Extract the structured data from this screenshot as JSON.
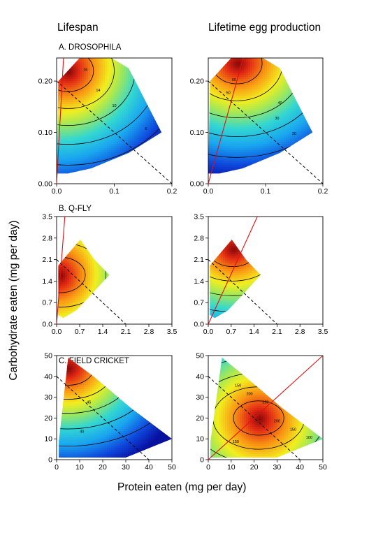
{
  "figure": {
    "column_titles": [
      "Lifespan",
      "Lifetime egg production"
    ],
    "xlabel": "Protein eaten (mg per day)",
    "ylabel": "Carbohydrate eaten (mg per day)"
  },
  "chart_data": [
    {
      "type": "heatmap",
      "panel": "A. DROSOPHILA",
      "column": "Lifespan",
      "x_ticks": [
        "0.0",
        "0.1",
        "0.2"
      ],
      "y_ticks": [
        "0.00",
        "0.10",
        "0.20"
      ],
      "xlim": [
        0,
        0.2
      ],
      "ylim": [
        0,
        0.245
      ],
      "region": [
        [
          0,
          0.02
        ],
        [
          0.003,
          0.2
        ],
        [
          0.04,
          0.245
        ],
        [
          0.095,
          0.245
        ],
        [
          0.125,
          0.225
        ],
        [
          0.15,
          0.17
        ],
        [
          0.182,
          0.1
        ],
        [
          0.125,
          0.06
        ],
        [
          0.06,
          0.03
        ],
        [
          0.02,
          0.02
        ]
      ],
      "hotspot": [
        0.02,
        0.22
      ],
      "hot_dir": [
        -1,
        1
      ],
      "contour_labels": [
        {
          "text": "16",
          "x": 0.05,
          "y": 0.22
        },
        {
          "text": "14",
          "x": 0.072,
          "y": 0.18
        },
        {
          "text": "10",
          "x": 0.1,
          "y": 0.15
        },
        {
          "text": "6",
          "x": 0.155,
          "y": 0.105
        }
      ],
      "nutrient_rail": {
        "from": [
          0,
          0
        ],
        "to": [
          0.012,
          0.245
        ]
      },
      "isocaloric": {
        "from": [
          0,
          0.2
        ],
        "to": [
          0.2,
          0
        ]
      }
    },
    {
      "type": "heatmap",
      "panel": "",
      "column": "Lifetime egg production",
      "x_ticks": [
        "0.0",
        "0.1",
        "0.2"
      ],
      "y_ticks": [
        "0.00",
        "0.10",
        "0.20"
      ],
      "xlim": [
        0,
        0.2
      ],
      "ylim": [
        0,
        0.245
      ],
      "region": [
        [
          0,
          0.02
        ],
        [
          0.003,
          0.2
        ],
        [
          0.04,
          0.245
        ],
        [
          0.095,
          0.245
        ],
        [
          0.125,
          0.225
        ],
        [
          0.15,
          0.17
        ],
        [
          0.182,
          0.1
        ],
        [
          0.125,
          0.06
        ],
        [
          0.06,
          0.03
        ],
        [
          0.02,
          0.02
        ]
      ],
      "hotspot": [
        0.05,
        0.235
      ],
      "hot_dir": [
        0,
        1
      ],
      "contour_labels": [
        {
          "text": "60",
          "x": 0.045,
          "y": 0.2
        },
        {
          "text": "50",
          "x": 0.035,
          "y": 0.175
        },
        {
          "text": "40",
          "x": 0.125,
          "y": 0.155
        },
        {
          "text": "30",
          "x": 0.12,
          "y": 0.125
        },
        {
          "text": "20",
          "x": 0.15,
          "y": 0.095
        }
      ],
      "nutrient_rail": {
        "from": [
          0,
          0
        ],
        "to": [
          0.061,
          0.245
        ]
      },
      "isocaloric": {
        "from": [
          0,
          0.2
        ],
        "to": [
          0.2,
          0
        ]
      }
    },
    {
      "type": "heatmap",
      "panel": "B. Q-FLY",
      "column": "Lifespan",
      "x_ticks": [
        "0.0",
        "0.7",
        "1.4",
        "2.1",
        "2.8",
        "3.5"
      ],
      "y_ticks": [
        "0.0",
        "0.7",
        "1.4",
        "2.1",
        "2.8",
        "3.5"
      ],
      "xlim": [
        0,
        3.5
      ],
      "ylim": [
        0,
        3.5
      ],
      "region": [
        [
          0.05,
          0.3
        ],
        [
          0.05,
          1.9
        ],
        [
          0.2,
          2.1
        ],
        [
          0.72,
          2.75
        ],
        [
          1.15,
          2.1
        ],
        [
          1.6,
          1.6
        ],
        [
          1.0,
          0.9
        ],
        [
          0.6,
          0.45
        ],
        [
          0.2,
          0.2
        ]
      ],
      "hotspot": [
        0.1,
        1.6
      ],
      "hot_dir": [
        -1,
        0.3
      ],
      "contour_labels": [],
      "nutrient_rail": {
        "from": [
          0,
          0
        ],
        "to": [
          0.25,
          3.5
        ]
      },
      "isocaloric": {
        "from": [
          0,
          2.1
        ],
        "to": [
          2.1,
          0
        ]
      }
    },
    {
      "type": "heatmap",
      "panel": "",
      "column": "Lifetime egg production",
      "x_ticks": [
        "0.0",
        "0.7",
        "1.4",
        "2.1",
        "2.8",
        "3.5"
      ],
      "y_ticks": [
        "0.0",
        "0.7",
        "1.4",
        "2.1",
        "2.8",
        "3.5"
      ],
      "xlim": [
        0,
        3.5
      ],
      "ylim": [
        0,
        3.5
      ],
      "region": [
        [
          0.05,
          0.3
        ],
        [
          0.05,
          1.9
        ],
        [
          0.2,
          2.1
        ],
        [
          0.72,
          2.75
        ],
        [
          1.15,
          2.1
        ],
        [
          1.6,
          1.6
        ],
        [
          1.0,
          0.9
        ],
        [
          0.6,
          0.45
        ],
        [
          0.2,
          0.2
        ]
      ],
      "hotspot": [
        0.75,
        2.45
      ],
      "hot_dir": [
        0,
        1
      ],
      "contour_labels": [],
      "nutrient_rail": {
        "from": [
          0,
          0
        ],
        "to": [
          1.5,
          3.5
        ]
      },
      "isocaloric": {
        "from": [
          0,
          2.1
        ],
        "to": [
          2.1,
          0
        ]
      }
    },
    {
      "type": "heatmap",
      "panel": "C. FIELD CRICKET",
      "column": "Lifespan",
      "x_ticks": [
        "0",
        "10",
        "20",
        "30",
        "40",
        "50"
      ],
      "y_ticks": [
        "0",
        "10",
        "20",
        "30",
        "40",
        "50"
      ],
      "xlim": [
        0,
        50
      ],
      "ylim": [
        0,
        50
      ],
      "region": [
        [
          1,
          1
        ],
        [
          1,
          9
        ],
        [
          5,
          49
        ],
        [
          16,
          40
        ],
        [
          32,
          25
        ],
        [
          50,
          10
        ],
        [
          30,
          1
        ]
      ],
      "hotspot": [
        5,
        44
      ],
      "hot_dir": [
        -0.3,
        1
      ],
      "contour_labels": [
        {
          "text": "45",
          "x": 14,
          "y": 27
        },
        {
          "text": "40",
          "x": 11,
          "y": 13
        }
      ],
      "nutrient_rail": null,
      "isocaloric": {
        "from": [
          0,
          40
        ],
        "to": [
          40,
          0
        ]
      }
    },
    {
      "type": "heatmap",
      "panel": "",
      "column": "Lifetime egg production",
      "x_ticks": [
        "0",
        "10",
        "20",
        "30",
        "40",
        "50"
      ],
      "y_ticks": [
        "0",
        "10",
        "20",
        "30",
        "40",
        "50"
      ],
      "xlim": [
        0,
        50
      ],
      "ylim": [
        0,
        50
      ],
      "region": [
        [
          1,
          1
        ],
        [
          1,
          9
        ],
        [
          6,
          49
        ],
        [
          16,
          40
        ],
        [
          32,
          25
        ],
        [
          50,
          10
        ],
        [
          30,
          1
        ]
      ],
      "hotspot": [
        22,
        20
      ],
      "hot_dir": [
        0,
        0
      ],
      "contour_labels": [
        {
          "text": "150",
          "x": 13,
          "y": 35
        },
        {
          "text": "200",
          "x": 18,
          "y": 31
        },
        {
          "text": "250",
          "x": 25,
          "y": 27
        },
        {
          "text": "200",
          "x": 30,
          "y": 18
        },
        {
          "text": "150",
          "x": 37,
          "y": 14
        },
        {
          "text": "150",
          "x": 12,
          "y": 8
        },
        {
          "text": "100",
          "x": 44,
          "y": 10
        }
      ],
      "nutrient_rail": {
        "from": [
          0,
          0
        ],
        "to": [
          50,
          50
        ]
      },
      "isocaloric": {
        "from": [
          0,
          40
        ],
        "to": [
          40,
          0
        ]
      }
    }
  ]
}
